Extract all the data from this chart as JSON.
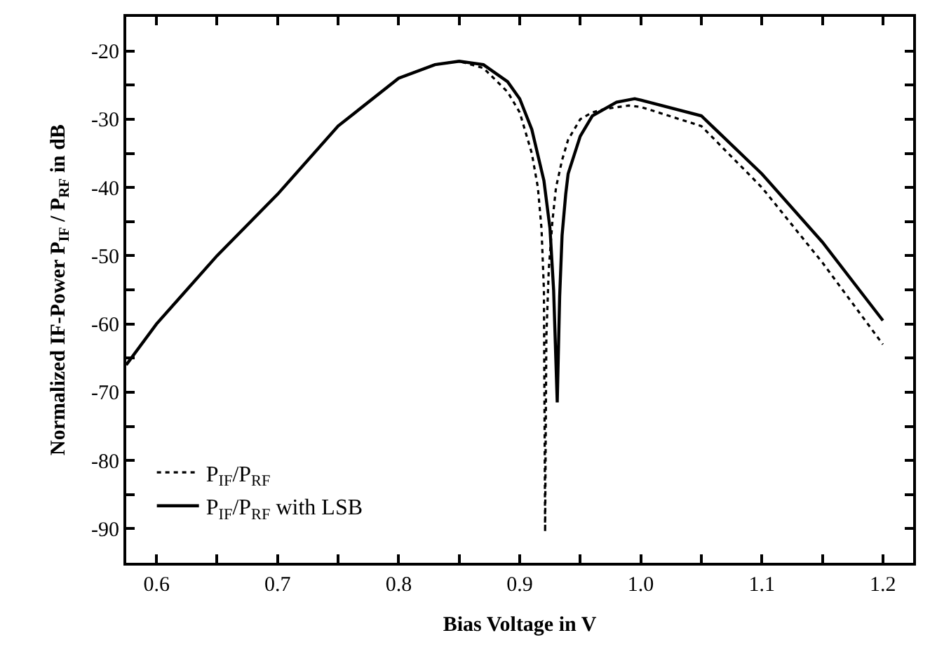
{
  "chart_data": {
    "type": "line",
    "xlabel": "Bias Voltage in V",
    "ylabel": "Normalized IF-Power P$_{IF}$ / P$_{RF}$ in dB",
    "xlim": [
      0.575,
      1.225
    ],
    "ylim": [
      -95,
      -15
    ],
    "xticks": [
      0.6,
      {
        "value": 0.65,
        "label": null
      },
      0.7,
      {
        "value": 0.75,
        "label": null
      },
      0.8,
      {
        "value": 0.85,
        "label": null
      },
      0.9,
      {
        "value": 0.95,
        "label": null
      },
      {
        "value": 1.0,
        "label": "1.0"
      },
      {
        "value": 1.05,
        "label": null
      },
      1.1,
      {
        "value": 1.15,
        "label": null
      },
      1.2
    ],
    "yticks": [
      -90,
      {
        "value": -85,
        "label": null
      },
      -80,
      {
        "value": -75,
        "label": null
      },
      -70,
      {
        "value": -65,
        "label": null
      },
      -60,
      {
        "value": -55,
        "label": null
      },
      -50,
      {
        "value": -45,
        "label": null
      },
      -40,
      {
        "value": -35,
        "label": null
      },
      -30,
      {
        "value": -25,
        "label": null
      },
      -20
    ],
    "grid": false,
    "legend": "bottom left",
    "marker": "none",
    "series": [
      {
        "name": "P$_{IF}$/P$_{RF}$",
        "color": "#000000",
        "line_style": "dotted",
        "x": [
          0.575,
          0.6,
          0.65,
          0.7,
          0.75,
          0.8,
          0.83,
          0.85,
          0.87,
          0.89,
          0.9,
          0.91,
          0.915,
          0.918,
          0.92,
          0.921,
          0.922,
          0.924,
          0.927,
          0.93,
          0.935,
          0.94,
          0.95,
          0.96,
          0.97,
          0.99,
          1.0,
          1.05,
          1.1,
          1.15,
          1.2
        ],
        "values": [
          -66,
          -60,
          -50,
          -41,
          -31,
          -24,
          -22,
          -21.5,
          -22.5,
          -26,
          -29,
          -35,
          -40,
          -46,
          -55,
          -90.5,
          -62,
          -52,
          -45,
          -40,
          -36,
          -33,
          -30,
          -29,
          -28.5,
          -28,
          -28.2,
          -31,
          -40,
          -51,
          -63
        ]
      },
      {
        "name": "P$_{IF}$/P$_{RF}$ with LSB",
        "color": "#000000",
        "line_style": "solid",
        "x": [
          0.575,
          0.6,
          0.65,
          0.7,
          0.75,
          0.8,
          0.83,
          0.85,
          0.87,
          0.89,
          0.9,
          0.91,
          0.92,
          0.925,
          0.928,
          0.931,
          0.933,
          0.935,
          0.938,
          0.94,
          0.95,
          0.96,
          0.98,
          0.995,
          1.0,
          1.05,
          1.1,
          1.15,
          1.2
        ],
        "values": [
          -66,
          -60,
          -50,
          -41,
          -31,
          -24,
          -22,
          -21.5,
          -22,
          -24.5,
          -27,
          -31.5,
          -39,
          -46,
          -55,
          -71.5,
          -56,
          -47,
          -41,
          -38,
          -32.5,
          -29.5,
          -27.5,
          -27,
          -27.2,
          -29.5,
          -38,
          -48,
          -59.5
        ]
      }
    ]
  }
}
